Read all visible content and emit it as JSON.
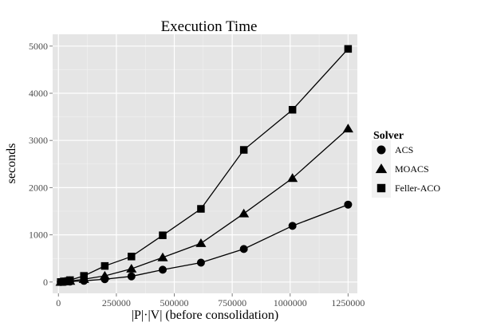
{
  "chart_data": {
    "type": "line",
    "title": "Execution Time",
    "xlabel": "|P|·|V| (before consolidation)",
    "ylabel": "seconds",
    "xlim": [
      -25000,
      1290000
    ],
    "ylim": [
      -240,
      5250
    ],
    "xticks": [
      0,
      250000,
      500000,
      750000,
      1000000,
      1250000
    ],
    "xtick_labels": [
      "0",
      "250000",
      "500000",
      "750000",
      "1000000",
      "1250000"
    ],
    "yticks": [
      0,
      1000,
      2000,
      3000,
      4000,
      5000
    ],
    "ytick_labels": [
      "0",
      "1000",
      "2000",
      "3000",
      "4000",
      "5000"
    ],
    "grid": true,
    "legend": {
      "title": "Solver",
      "position": "right"
    },
    "series": [
      {
        "name": "ACS",
        "marker": "circle",
        "color": "#000000",
        "x": [
          10000,
          30000,
          50000,
          110000,
          200000,
          315000,
          450000,
          615000,
          800000,
          1010000,
          1250000
        ],
        "y": [
          0,
          5,
          10,
          25,
          60,
          120,
          260,
          410,
          700,
          1190,
          1640
        ]
      },
      {
        "name": "MOACS",
        "marker": "triangle",
        "color": "#000000",
        "x": [
          10000,
          30000,
          50000,
          110000,
          200000,
          315000,
          450000,
          615000,
          800000,
          1010000,
          1250000
        ],
        "y": [
          0,
          10,
          20,
          60,
          130,
          280,
          520,
          820,
          1450,
          2200,
          3250
        ]
      },
      {
        "name": "Feller-ACO",
        "marker": "square",
        "color": "#000000",
        "x": [
          10000,
          30000,
          50000,
          110000,
          200000,
          315000,
          450000,
          615000,
          800000,
          1010000,
          1250000
        ],
        "y": [
          0,
          15,
          40,
          130,
          340,
          540,
          990,
          1550,
          2800,
          3650,
          4940
        ]
      }
    ]
  }
}
